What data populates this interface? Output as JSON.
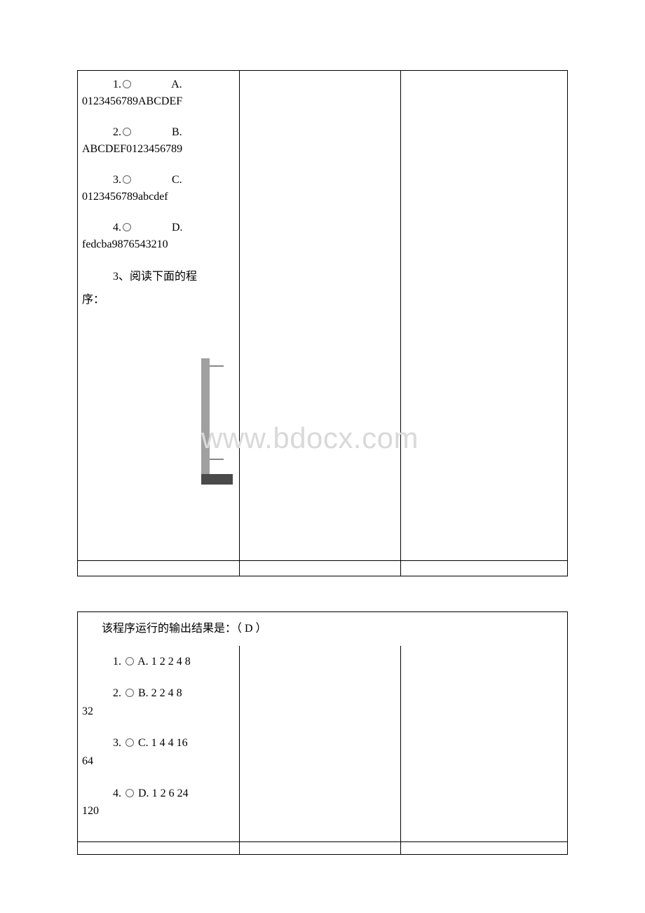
{
  "table1": {
    "options": [
      {
        "num": "1.",
        "letter": "A.",
        "value": "0123456789ABCDEF"
      },
      {
        "num": "2.",
        "letter": "B.",
        "value": "ABCDEF0123456789"
      },
      {
        "num": "3.",
        "letter": "C.",
        "value": "0123456789abcdef"
      },
      {
        "num": "4.",
        "letter": "D.",
        "value": "fedcba9876543210"
      }
    ],
    "question_line1": "3、阅读下面的程",
    "question_line2": "序："
  },
  "watermark": "www.bdocx.com",
  "table2": {
    "result_text": "该程序运行的输出结果是：（  D  ）",
    "options": [
      {
        "num": "1.",
        "letter": "A.",
        "value": "1 2 2 4 8",
        "cont": ""
      },
      {
        "num": "2.",
        "letter": "B.",
        "value": "2 2 4 8",
        "cont": "32"
      },
      {
        "num": "3.",
        "letter": "C.",
        "value": "1 4 4 16",
        "cont": "64"
      },
      {
        "num": "4.",
        "letter": "D.",
        "value": "1 2 6 24",
        "cont": "120"
      }
    ]
  }
}
